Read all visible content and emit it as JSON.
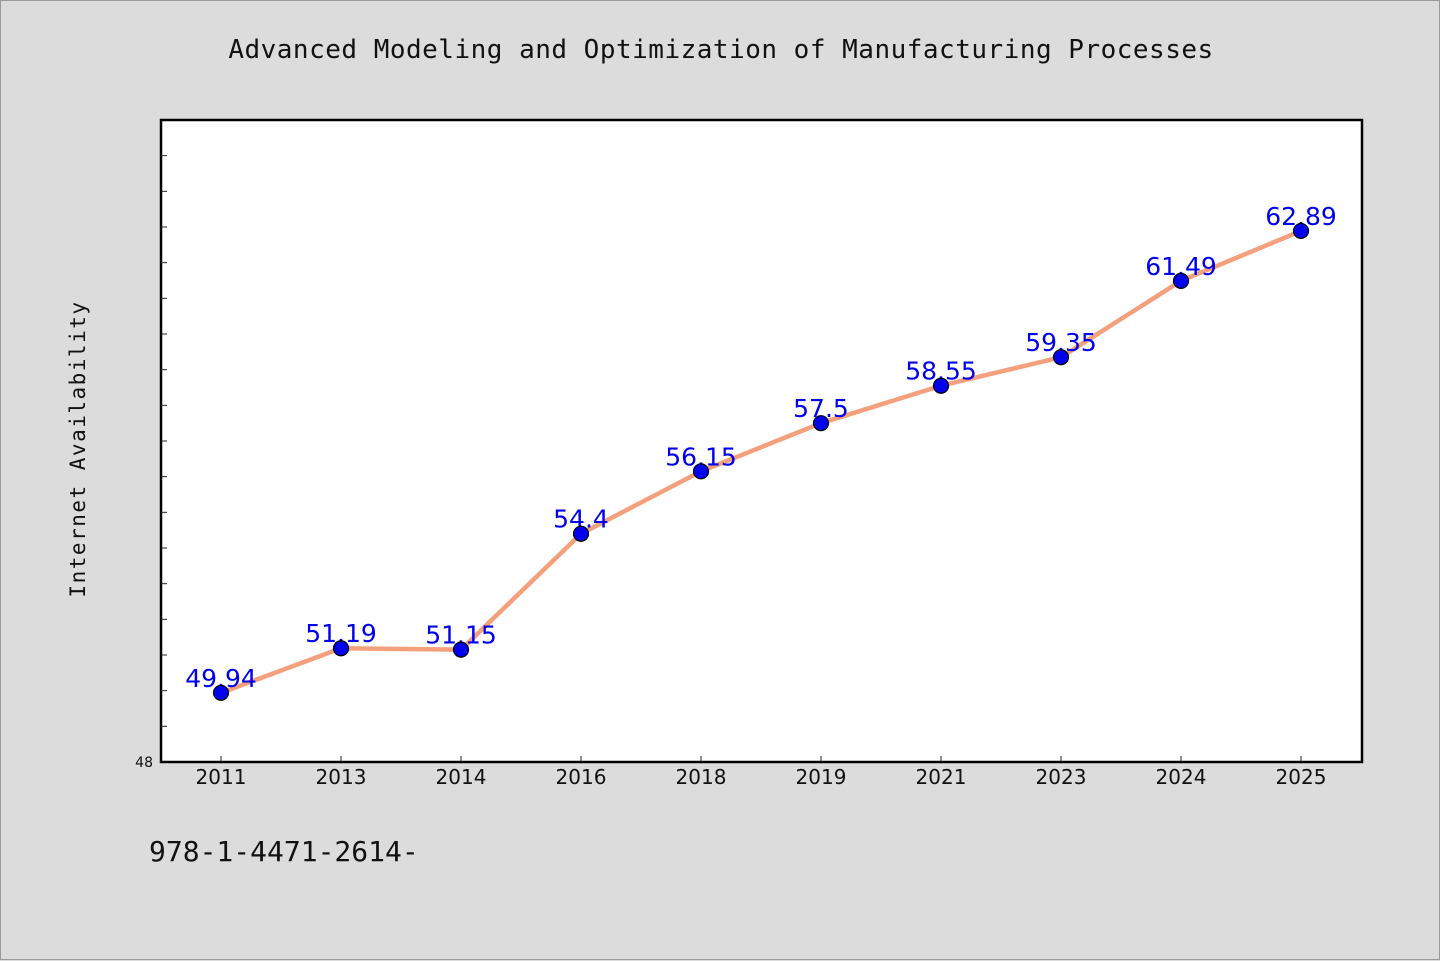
{
  "chart_data": {
    "type": "line",
    "title": "Advanced Modeling and Optimization of Manufacturing Processes",
    "xlabel": "",
    "ylabel": "Internet Availability",
    "categories": [
      "2011",
      "2013",
      "2014",
      "2016",
      "2018",
      "2019",
      "2021",
      "2023",
      "2024",
      "2025"
    ],
    "series": [
      {
        "values": [
          49.94,
          51.19,
          51.15,
          54.4,
          56.15,
          57.5,
          58.55,
          59.35,
          61.49,
          62.89
        ],
        "labels": [
          "49.94",
          "51.19",
          "51.15",
          "54.4",
          "56.15",
          "57.5",
          "58.55",
          "59.35",
          "61.49",
          "62.89"
        ]
      }
    ],
    "ylim": [
      48,
      66
    ],
    "y_tick_labels": [
      "48"
    ],
    "grid": false,
    "legend": "none",
    "colors": {
      "line": "#f4a07c",
      "marker": "#0000ee",
      "data_label": "#0000ee",
      "plot_background": "#ffffff",
      "figure_background": "#dcdcdc"
    }
  },
  "footnote": "978-1-4471-2614-"
}
